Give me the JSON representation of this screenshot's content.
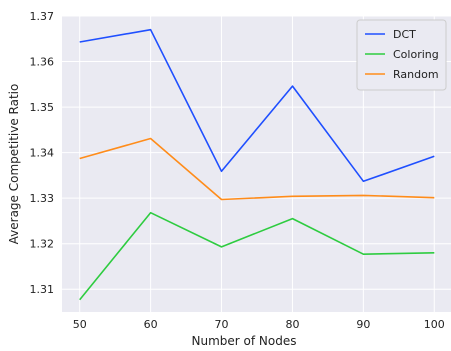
{
  "chart_data": {
    "type": "line",
    "title": "",
    "xlabel": "Number of Nodes",
    "ylabel": "Average Competitive Ratio",
    "x": [
      50,
      60,
      70,
      80,
      90,
      100
    ],
    "xticks": [
      "50",
      "60",
      "70",
      "80",
      "90",
      "100"
    ],
    "yticks": [
      "1.31",
      "1.32",
      "1.33",
      "1.34",
      "1.35",
      "1.36",
      "1.37"
    ],
    "ylim": [
      1.305,
      1.37
    ],
    "xlim": [
      47.5,
      102.5
    ],
    "grid": true,
    "legend_position": "top-right",
    "series": [
      {
        "name": "DCT",
        "color": "#1f4fff",
        "values": [
          1.3643,
          1.367,
          1.3359,
          1.3546,
          1.3337,
          1.3392
        ]
      },
      {
        "name": "Coloring",
        "color": "#2ecc40",
        "values": [
          1.3077,
          1.3268,
          1.3193,
          1.3255,
          1.3177,
          1.318
        ]
      },
      {
        "name": "Random",
        "color": "#ff8c1a",
        "values": [
          1.3387,
          1.3431,
          1.3297,
          1.3304,
          1.3306,
          1.3301
        ]
      }
    ]
  }
}
